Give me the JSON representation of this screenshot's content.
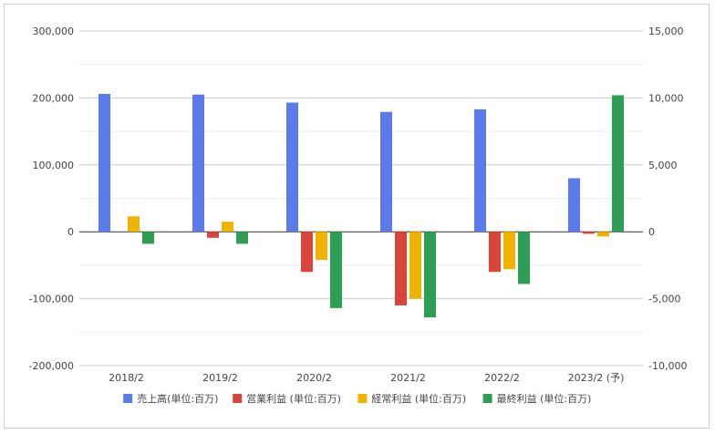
{
  "chart_data": {
    "type": "bar",
    "categories": [
      "2018/2",
      "2019/2",
      "2020/2",
      "2021/2",
      "2022/2",
      "2023/2 (予)"
    ],
    "series": [
      {
        "name": "売上高(単位:百万)",
        "axis": "left",
        "color": "#5b7bea",
        "values": [
          206000,
          205000,
          193000,
          179000,
          183000,
          80000
        ]
      },
      {
        "name": "営業利益 (単位:百万)",
        "axis": "right",
        "color": "#d9443b",
        "values": [
          0,
          -450,
          -3000,
          -5500,
          -3000,
          -150
        ]
      },
      {
        "name": "経常利益 (単位:百万)",
        "axis": "right",
        "color": "#f0b400",
        "values": [
          1150,
          750,
          -2100,
          -5000,
          -2800,
          -350
        ]
      },
      {
        "name": "最終利益 (単位:百万)",
        "axis": "right",
        "color": "#2e9e55",
        "values": [
          -900,
          -900,
          -5700,
          -6400,
          -3900,
          10200
        ]
      }
    ],
    "y_left": {
      "lim": [
        -200000,
        300000
      ],
      "ticks": [
        -200000,
        -100000,
        0,
        100000,
        200000,
        300000
      ],
      "tick_labels": [
        "-200,000",
        "-100,000",
        "0",
        "100,000",
        "200,000",
        "300,000"
      ]
    },
    "y_right": {
      "lim": [
        -10000,
        15000
      ],
      "ticks": [
        -10000,
        -5000,
        0,
        5000,
        10000,
        15000
      ],
      "tick_labels": [
        "-10,000",
        "-5,000",
        "0",
        "5,000",
        "10,000",
        "15,000"
      ]
    },
    "grid": true,
    "legend": "bottom",
    "title": "",
    "xlabel": "",
    "ylabel": ""
  }
}
